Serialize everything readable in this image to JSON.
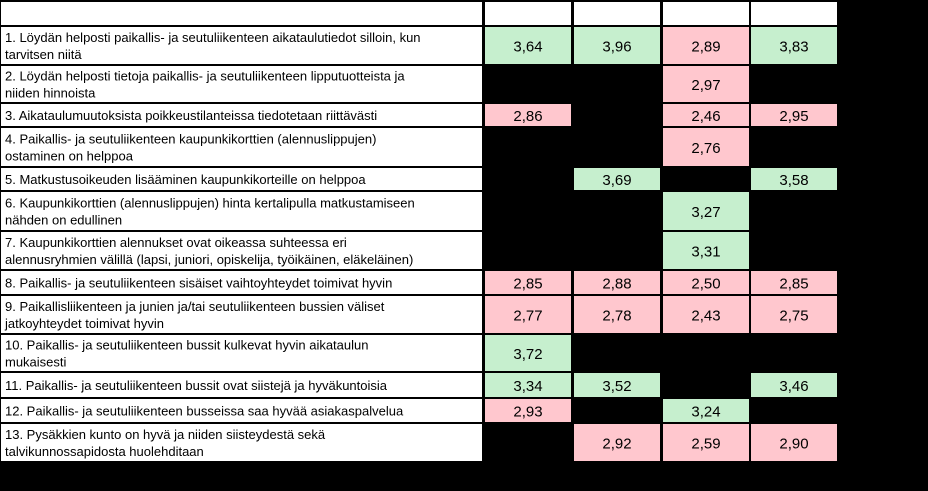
{
  "colors": {
    "background": "#000000",
    "good": "#c6efce",
    "bad": "#ffc7ce",
    "label_cell": "#ffffff",
    "header_cell": "#ffffff"
  },
  "chart_data": {
    "type": "heatmap",
    "title": "",
    "columns": [
      "",
      "",
      "",
      ""
    ],
    "threshold": 3,
    "rows": [
      {
        "label": [
          "1. Löydän helposti paikallis- ja seutuliikenteen aikataulutiedot silloin, kun",
          "tarvitsen niitä"
        ],
        "values": [
          3.64,
          3.96,
          2.89,
          3.83
        ],
        "display": [
          "3,64",
          "3,96",
          "2,89",
          "3,83"
        ]
      },
      {
        "label": [
          "2. Löydän helposti tietoja paikallis- ja seutuliikenteen lipputuotteista ja",
          "niiden hinnoista"
        ],
        "values": [
          null,
          null,
          2.97,
          null
        ],
        "display": [
          "",
          "",
          "2,97",
          ""
        ]
      },
      {
        "label": [
          "3. Aikataulumuutoksista poikkeustilanteissa tiedotetaan riittävästi"
        ],
        "values": [
          2.86,
          null,
          2.46,
          2.95
        ],
        "display": [
          "2,86",
          "",
          "2,46",
          "2,95"
        ]
      },
      {
        "label": [
          "4. Paikallis- ja seutuliikenteen kaupunkikorttien (alennuslippujen)",
          "ostaminen on helppoa"
        ],
        "values": [
          null,
          null,
          2.76,
          null
        ],
        "display": [
          "",
          "",
          "2,76",
          ""
        ]
      },
      {
        "label": [
          "5. Matkustusoikeuden lisääminen kaupunkikorteille on helppoa"
        ],
        "values": [
          null,
          3.69,
          null,
          3.58
        ],
        "display": [
          "",
          "3,69",
          "",
          "3,58"
        ]
      },
      {
        "label": [
          "6. Kaupunkikorttien (alennuslippujen) hinta kertalipulla matkustamiseen",
          "nähden on edullinen"
        ],
        "values": [
          null,
          null,
          3.27,
          null
        ],
        "display": [
          "",
          "",
          "3,27",
          ""
        ]
      },
      {
        "label": [
          "7. Kaupunkikorttien alennukset ovat oikeassa suhteessa eri",
          "alennusryhmien välillä (lapsi, juniori, opiskelija, työikäinen, eläkeläinen)"
        ],
        "values": [
          null,
          null,
          3.31,
          null
        ],
        "display": [
          "",
          "",
          "3,31",
          ""
        ]
      },
      {
        "label": [
          "8. Paikallis- ja seutuliikenteen sisäiset vaihtoyhteydet toimivat hyvin"
        ],
        "values": [
          2.85,
          2.88,
          2.5,
          2.85
        ],
        "display": [
          "2,85",
          "2,88",
          "2,50",
          "2,85"
        ]
      },
      {
        "label": [
          "9. Paikallisliikenteen ja junien ja/tai seutuliikenteen bussien väliset",
          "jatkoyhteydet toimivat hyvin"
        ],
        "values": [
          2.77,
          2.78,
          2.43,
          2.75
        ],
        "display": [
          "2,77",
          "2,78",
          "2,43",
          "2,75"
        ]
      },
      {
        "label": [
          "10. Paikallis- ja seutuliikenteen bussit kulkevat hyvin aikataulun",
          "mukaisesti"
        ],
        "values": [
          3.72,
          null,
          null,
          null
        ],
        "display": [
          "3,72",
          "",
          "",
          ""
        ]
      },
      {
        "label": [
          "11. Paikallis- ja seutuliikenteen bussit ovat siistejä ja hyväkuntoisia"
        ],
        "values": [
          3.34,
          3.52,
          null,
          3.46
        ],
        "display": [
          "3,34",
          "3,52",
          "",
          "3,46"
        ]
      },
      {
        "label": [
          "12. Paikallis- ja seutuliikenteen busseissa saa hyvää asiakaspalvelua"
        ],
        "values": [
          2.93,
          null,
          3.24,
          null
        ],
        "display": [
          "2,93",
          "",
          "3,24",
          ""
        ]
      },
      {
        "label": [
          "13. Pysäkkien kunto on hyvä ja niiden siisteydestä sekä",
          "talvikunnossapidosta huolehditaan"
        ],
        "values": [
          null,
          2.92,
          2.59,
          2.9
        ],
        "display": [
          "",
          "2,92",
          "2,59",
          "2,90"
        ]
      }
    ]
  }
}
